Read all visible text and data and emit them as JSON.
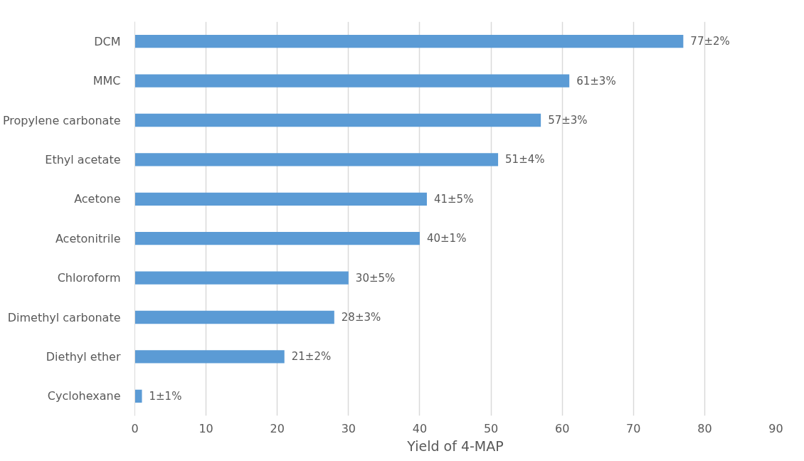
{
  "chart_data": {
    "type": "bar",
    "orientation": "horizontal",
    "xlabel": "Yield of 4-MAP",
    "categories": [
      "DCM",
      "MMC",
      "Propylene carbonate",
      "Ethyl acetate",
      "Acetone",
      "Acetonitrile",
      "Chloroform",
      "Dimethyl carbonate",
      "Diethyl ether",
      "Cyclohexane"
    ],
    "values": [
      77,
      61,
      57,
      51,
      41,
      40,
      30,
      28,
      21,
      1
    ],
    "value_labels": [
      "77±2%",
      "61±3%",
      "57±3%",
      "51±4%",
      "41±5%",
      "40±1%",
      "30±5%",
      "28±3%",
      "21±2%",
      "1±1%"
    ],
    "color": "#5b9bd5",
    "xlim": [
      0,
      90
    ],
    "xticks": [
      0,
      10,
      20,
      30,
      40,
      50,
      60,
      70,
      80,
      90
    ],
    "grid": "x"
  }
}
